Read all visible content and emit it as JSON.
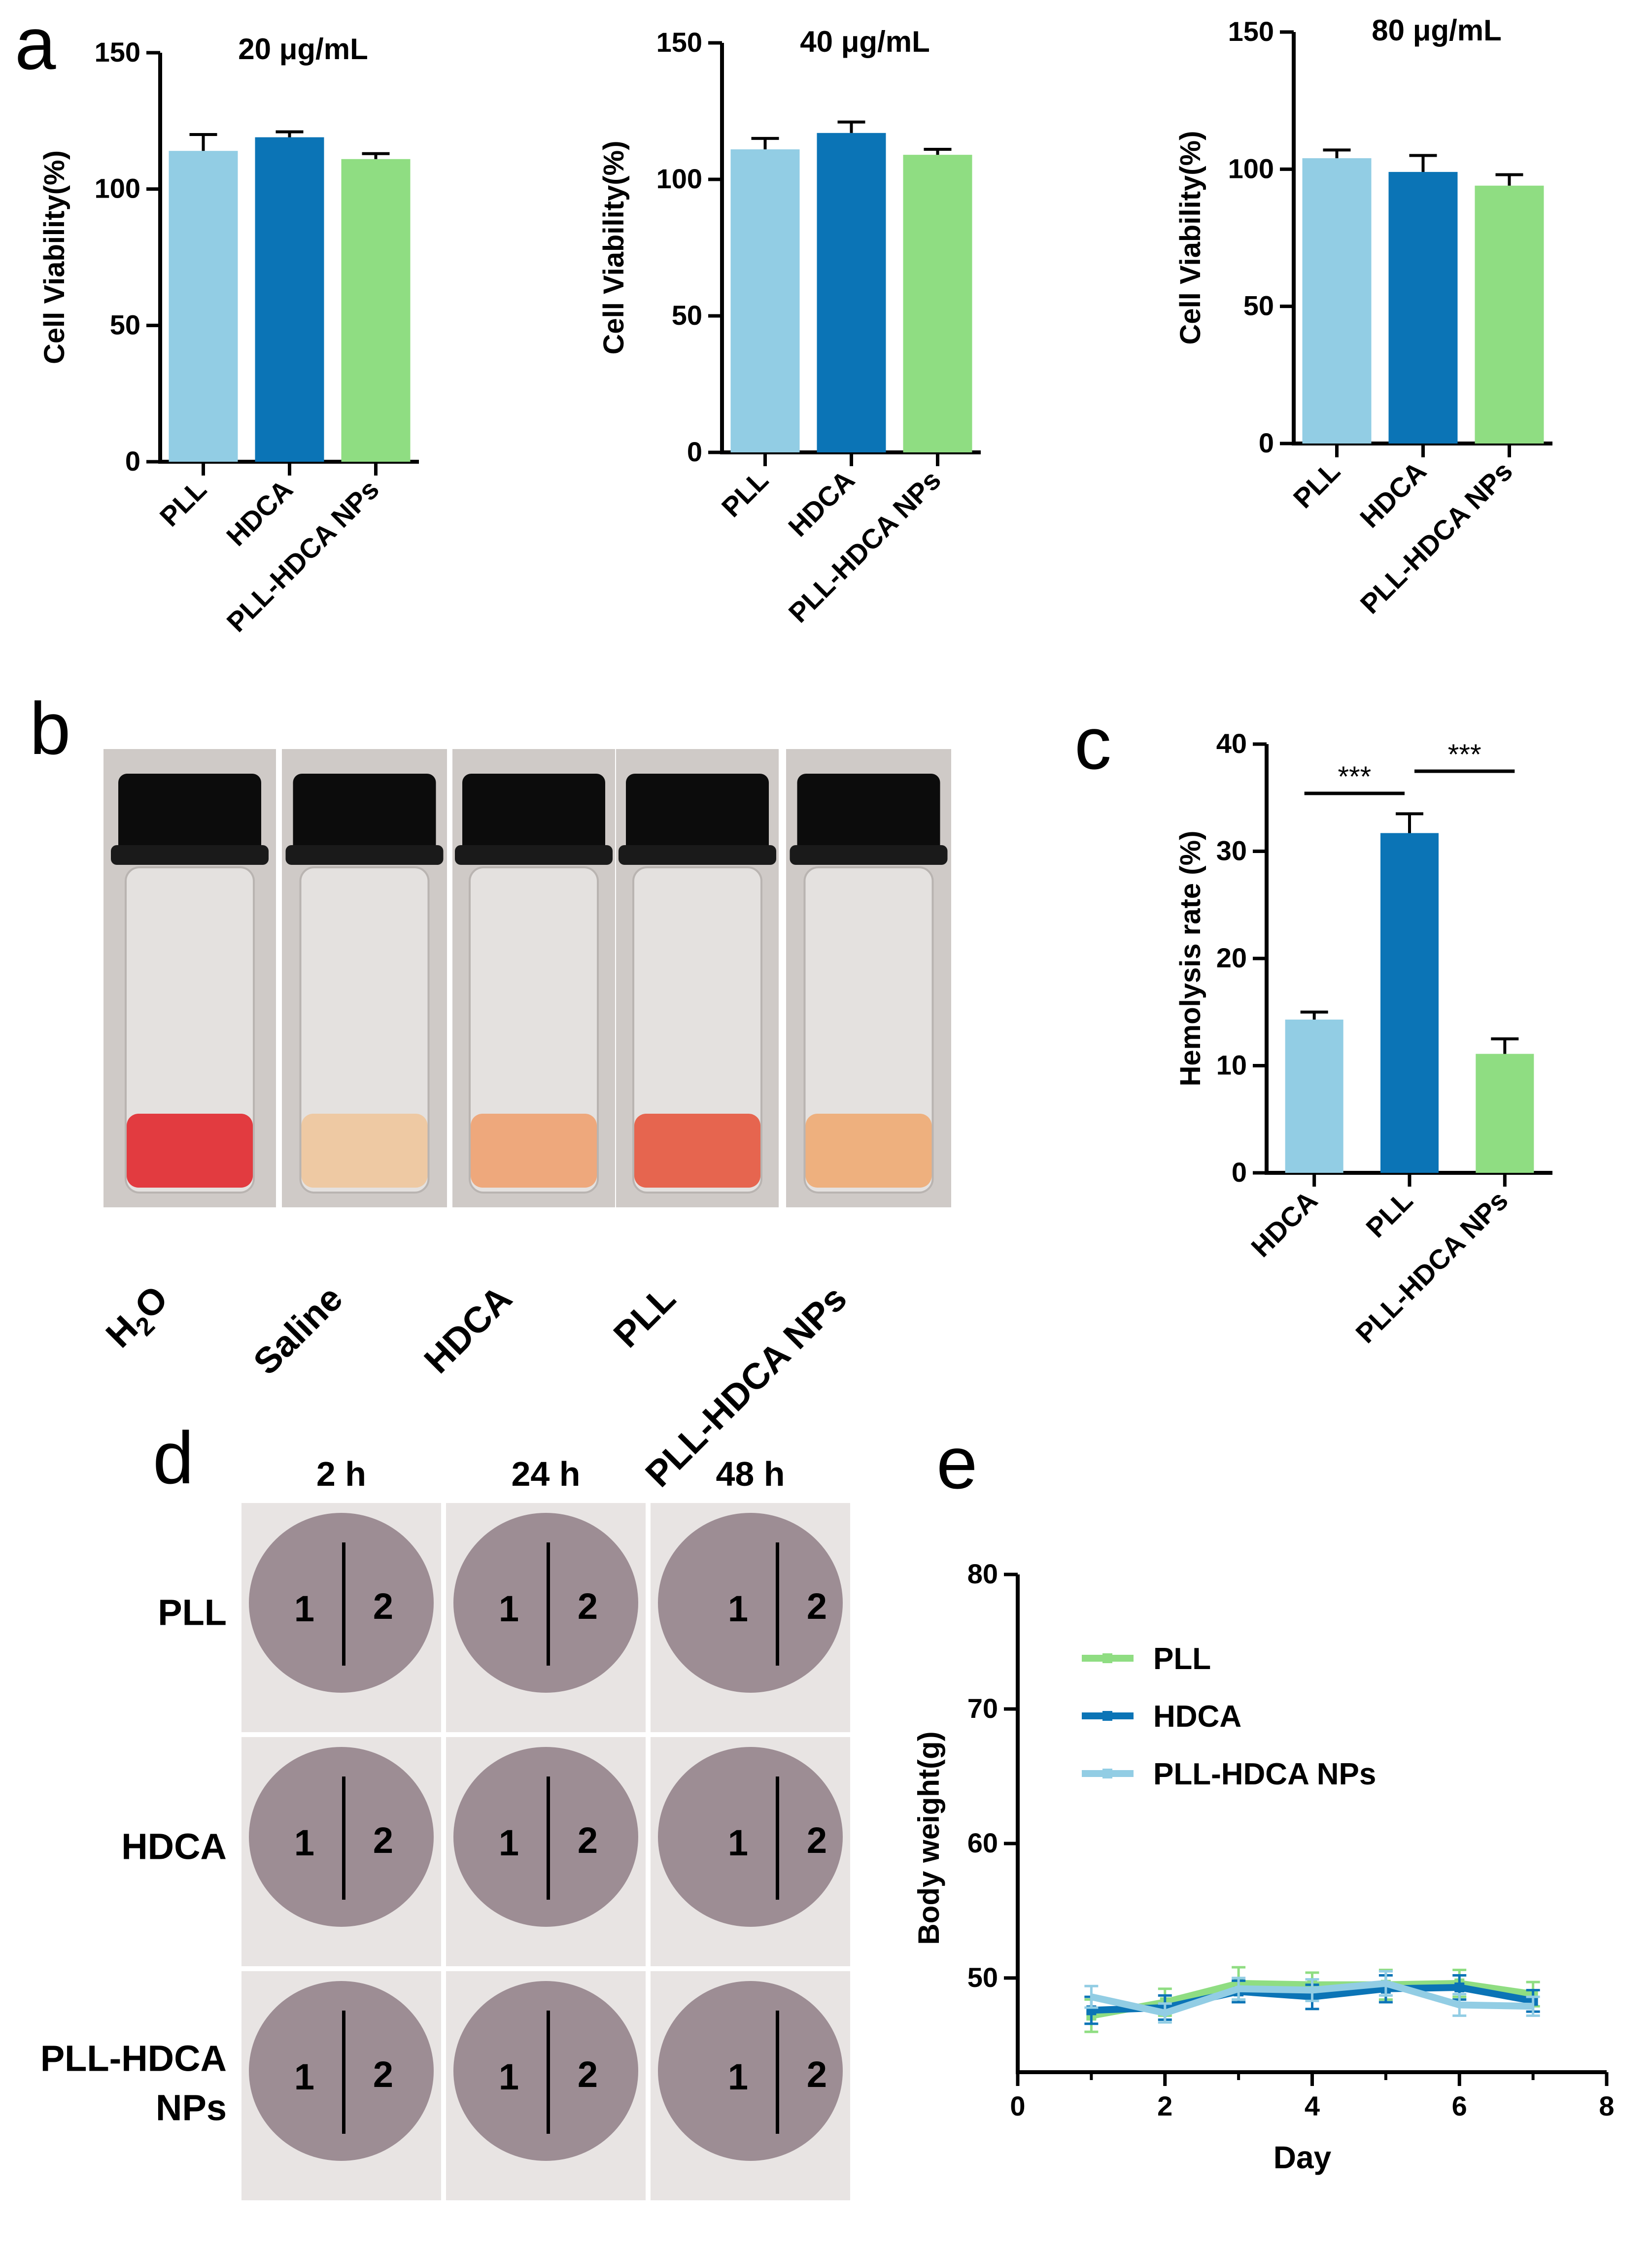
{
  "figure": {
    "panel_labels": {
      "a": "a",
      "b": "b",
      "c": "c",
      "d": "d",
      "e": "e"
    },
    "panel_b": {
      "labels": [
        "H2O",
        "Saline",
        "HDCA",
        "PLL",
        "PLL-HDCA NPs"
      ],
      "liquid_colors": [
        "#e23b40",
        "#eec9a3",
        "#eea87c",
        "#e6654f",
        "#eeb07e"
      ],
      "cap_color": "#0c0c0c",
      "background_color": "#cfcac7"
    },
    "panel_d": {
      "column_labels": [
        "2 h",
        "24 h",
        "48 h"
      ],
      "row_labels": [
        "PLL",
        "HDCA",
        "PLL-HDCA NPs"
      ],
      "row_label_lines": [
        [
          "PLL"
        ],
        [
          "HDCA"
        ],
        [
          "PLL-HDCA",
          "NPs"
        ]
      ],
      "site_labels": [
        "1",
        "2"
      ],
      "skin_color": "#8f7e86",
      "fur_color": "#e8e4e3"
    }
  },
  "chart_data": [
    {
      "id": "a1",
      "type": "bar",
      "title": "20 μg/mL",
      "ylabel": "Cell Viability(%)",
      "xlabel": "",
      "categories": [
        "PLL",
        "HDCA",
        "PLL-HDCA NPs"
      ],
      "values": [
        114,
        119,
        111
      ],
      "errors": [
        6,
        2,
        2
      ],
      "colors": [
        "#92cde4",
        "#0b74b6",
        "#8fdd82"
      ],
      "ylim": [
        0,
        150
      ],
      "yticks": [
        0,
        50,
        100,
        150
      ]
    },
    {
      "id": "a2",
      "type": "bar",
      "title": "40 μg/mL",
      "ylabel": "Cell Viability(%)",
      "xlabel": "",
      "categories": [
        "PLL",
        "HDCA",
        "PLL-HDCA NPs"
      ],
      "values": [
        111,
        117,
        109
      ],
      "errors": [
        4,
        4,
        2
      ],
      "colors": [
        "#92cde4",
        "#0b74b6",
        "#8fdd82"
      ],
      "ylim": [
        0,
        150
      ],
      "yticks": [
        0,
        50,
        100,
        150
      ]
    },
    {
      "id": "a3",
      "type": "bar",
      "title": "80 μg/mL",
      "ylabel": "Cell Viability(%)",
      "xlabel": "",
      "categories": [
        "PLL",
        "HDCA",
        "PLL-HDCA NPs"
      ],
      "values": [
        104,
        99,
        94
      ],
      "errors": [
        3,
        6,
        4
      ],
      "colors": [
        "#92cde4",
        "#0b74b6",
        "#8fdd82"
      ],
      "ylim": [
        0,
        150
      ],
      "yticks": [
        0,
        50,
        100,
        150
      ]
    },
    {
      "id": "c",
      "type": "bar",
      "title": "",
      "ylabel": "Hemolysis rate (%)",
      "xlabel": "",
      "categories": [
        "HDCA",
        "PLL",
        "PLL-HDCA NPs"
      ],
      "values": [
        14.3,
        31.7,
        11.1
      ],
      "errors": [
        0.7,
        1.8,
        1.4
      ],
      "colors": [
        "#92cde4",
        "#0b74b6",
        "#8fdd82"
      ],
      "ylim": [
        0,
        40
      ],
      "yticks": [
        0,
        10,
        20,
        30,
        40
      ],
      "significance": [
        {
          "from": 0,
          "to": 1,
          "label": "***"
        },
        {
          "from": 1,
          "to": 2,
          "label": "***"
        }
      ]
    },
    {
      "id": "e",
      "type": "line",
      "title": "",
      "xlabel": "Day",
      "ylabel": "Body weight(g)",
      "xlim": [
        0,
        8
      ],
      "ylim": [
        43,
        80
      ],
      "xticks": [
        0,
        2,
        4,
        6,
        8
      ],
      "yticks": [
        50,
        60,
        70,
        80
      ],
      "x": [
        1,
        2,
        3,
        4,
        5,
        6,
        7
      ],
      "legend_position": "upper-center",
      "series": [
        {
          "name": "PLL",
          "color": "#8fdd82",
          "values": [
            47.2,
            48.2,
            49.6,
            49.5,
            49.5,
            49.6,
            48.8
          ],
          "errors": [
            1.2,
            1.0,
            1.2,
            0.9,
            1.1,
            1.0,
            0.9
          ]
        },
        {
          "name": "HDCA",
          "color": "#0b74b6",
          "values": [
            47.6,
            47.8,
            49.0,
            48.6,
            49.2,
            49.3,
            48.3
          ],
          "errors": [
            1.0,
            0.9,
            0.8,
            0.9,
            1.0,
            0.9,
            0.8
          ]
        },
        {
          "name": "PLL-HDCA NPs",
          "color": "#92cde4",
          "values": [
            48.6,
            47.4,
            49.2,
            49.1,
            49.6,
            48.0,
            47.9
          ],
          "errors": [
            0.8,
            0.7,
            0.8,
            0.8,
            0.9,
            0.8,
            0.7
          ]
        }
      ]
    }
  ]
}
